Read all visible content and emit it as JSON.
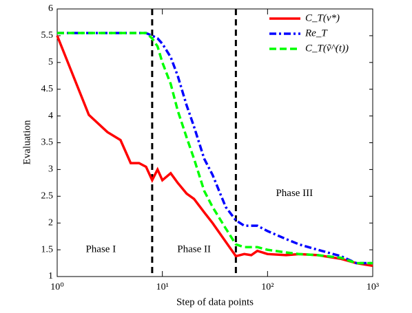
{
  "chart_data": {
    "type": "line",
    "xlabel": "Step of data points",
    "ylabel": "Evaluation",
    "xscale": "log",
    "xlim": [
      1,
      1000
    ],
    "xticks": [
      {
        "value": 1,
        "label": "10⁰"
      },
      {
        "value": 10,
        "label": "10¹"
      },
      {
        "value": 100,
        "label": "10²"
      },
      {
        "value": 1000,
        "label": "10³"
      }
    ],
    "ylim": [
      1,
      6
    ],
    "yticks": [
      1,
      1.5,
      2,
      2.5,
      3,
      3.5,
      4,
      4.5,
      5,
      5.5,
      6
    ],
    "legend": "upper right",
    "x": [
      1,
      2,
      3,
      4,
      5,
      6,
      7,
      8,
      9,
      10,
      12,
      14,
      17,
      20,
      25,
      30,
      40,
      50,
      60,
      70,
      80,
      100,
      150,
      200,
      300,
      500,
      700,
      1000
    ],
    "series": [
      {
        "name": "C_T(v*)",
        "color": "#ff0000",
        "dash": "solid",
        "values": [
          5.5,
          4.02,
          3.7,
          3.55,
          3.12,
          3.12,
          3.05,
          2.8,
          3.0,
          2.8,
          2.93,
          2.75,
          2.55,
          2.45,
          2.2,
          2.0,
          1.65,
          1.38,
          1.42,
          1.4,
          1.48,
          1.42,
          1.4,
          1.42,
          1.4,
          1.33,
          1.25,
          1.2
        ]
      },
      {
        "name": "Re_T",
        "color": "#0000ff",
        "dash": "dashdot",
        "values": [
          5.55,
          5.55,
          5.55,
          5.55,
          5.55,
          5.55,
          5.55,
          5.5,
          5.45,
          5.35,
          5.1,
          4.75,
          4.2,
          3.8,
          3.2,
          2.9,
          2.3,
          2.05,
          1.95,
          1.95,
          1.95,
          1.85,
          1.7,
          1.6,
          1.5,
          1.38,
          1.25,
          1.25
        ]
      },
      {
        "name": "C_T(ṽ^(t))",
        "color": "#00ff00",
        "dash": "dashed",
        "values": [
          5.55,
          5.55,
          5.55,
          5.55,
          5.55,
          5.55,
          5.55,
          5.45,
          5.3,
          5.0,
          4.6,
          4.1,
          3.6,
          3.2,
          2.6,
          2.3,
          1.9,
          1.6,
          1.55,
          1.55,
          1.55,
          1.5,
          1.45,
          1.42,
          1.4,
          1.35,
          1.25,
          1.25
        ]
      }
    ],
    "vlines": [
      8,
      50
    ],
    "annotations": [
      {
        "text": "Phase I",
        "x": 2.6,
        "y": 1.5
      },
      {
        "text": "Phase II",
        "x": 20,
        "y": 1.5
      },
      {
        "text": "Phase III",
        "x": 180,
        "y": 2.55
      }
    ]
  }
}
